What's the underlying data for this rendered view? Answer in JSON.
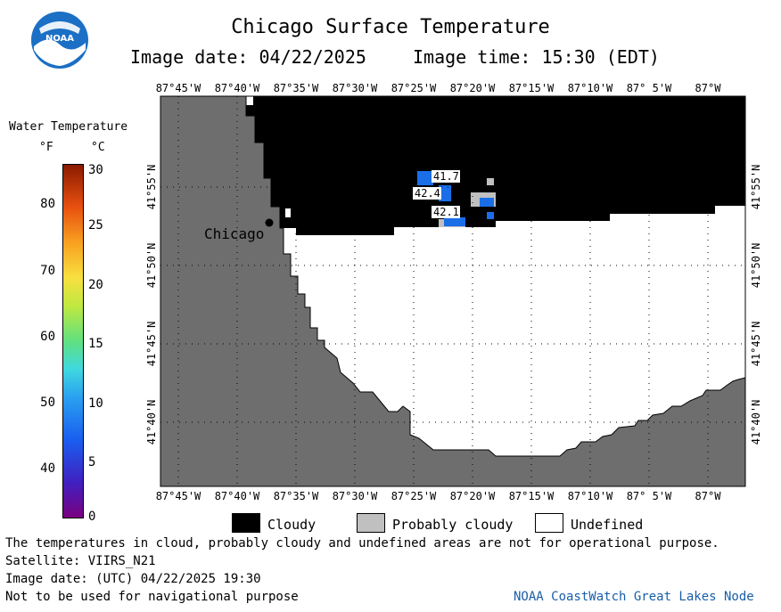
{
  "header": {
    "title": "Chicago Surface Temperature",
    "image_date": "Image date: 04/22/2025",
    "image_time": "Image time: 15:30 (EDT)"
  },
  "logo": {
    "text": "NOAA"
  },
  "legend": {
    "title": "Water Temperature",
    "unit_f": "°F",
    "unit_c": "°C",
    "f_ticks": [
      "80",
      "70",
      "60",
      "50",
      "40"
    ],
    "c_ticks": [
      "30",
      "25",
      "20",
      "15",
      "10",
      "5",
      "0"
    ],
    "colors": {
      "cloudy": "#000000",
      "probably_cloudy": "#c0c0c0",
      "undefined": "#ffffff",
      "land": "#6e6e6e"
    }
  },
  "map": {
    "lon_labels": [
      "87°45'W",
      "87°40'W",
      "87°35'W",
      "87°30'W",
      "87°25'W",
      "87°20'W",
      "87°15'W",
      "87°10'W",
      "87° 5'W",
      "87°W"
    ],
    "lat_labels": [
      "41°55'N",
      "41°50'N",
      "41°45'N",
      "41°40'N"
    ],
    "city": "Chicago",
    "temps": [
      "41.7",
      "42.4",
      "42.1"
    ]
  },
  "bottom_legend": {
    "cloudy": "Cloudy",
    "probably_cloudy": "Probably cloudy",
    "undefined": "Undefined"
  },
  "notes": {
    "line1": "The temperatures in cloud, probably cloudy and undefined areas are not for operational purpose.",
    "line2": "Satellite: VIIRS_N21",
    "line3": "Image date: (UTC) 04/22/2025  19:30",
    "line4": "Not to be used for navigational purpose",
    "node": "NOAA CoastWatch Great Lakes Node"
  }
}
